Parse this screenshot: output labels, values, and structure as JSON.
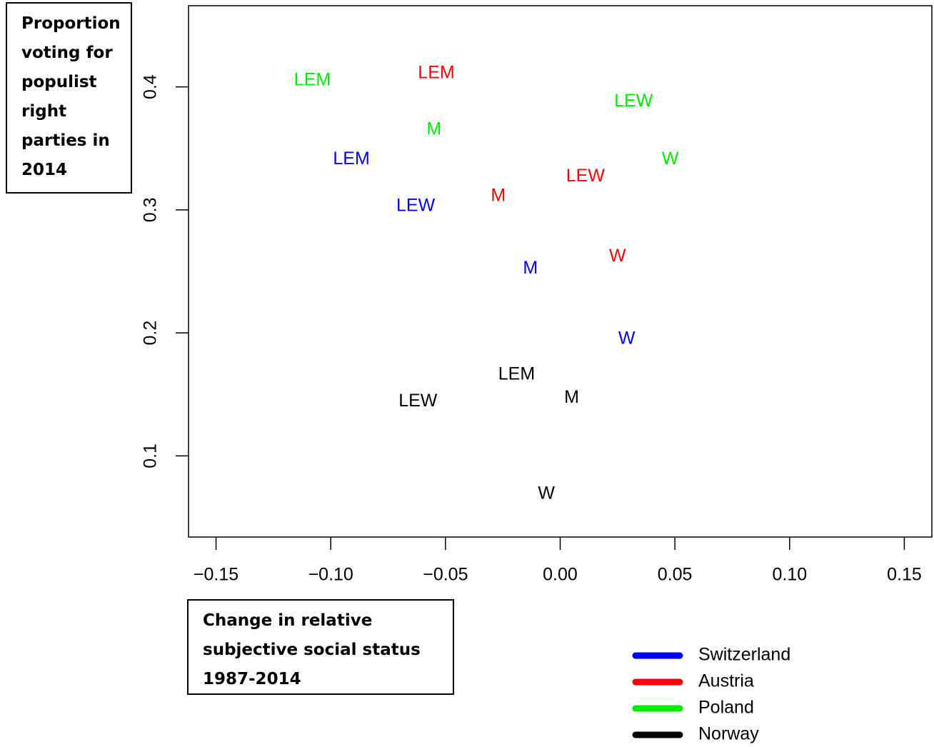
{
  "chart_data": {
    "type": "scatter",
    "y_label": "Proportion voting for populist right parties in 2014",
    "x_label": "Change in relative subjective social status 1987-2014",
    "xlim": [
      -0.162,
      0.162
    ],
    "ylim": [
      0.034,
      0.466
    ],
    "xticks": [
      {
        "value": -0.15,
        "label": "−0.15"
      },
      {
        "value": -0.1,
        "label": "−0.10"
      },
      {
        "value": -0.05,
        "label": "−0.05"
      },
      {
        "value": 0,
        "label": "0.00"
      },
      0.05,
      {
        "value": 0.1,
        "label": "0.10"
      },
      0.15
    ],
    "yticks": [
      0.1,
      0.2,
      0.3,
      0.4
    ],
    "legend": "bottom-right",
    "series": [
      {
        "name": "Switzerland",
        "color": "#0000ff",
        "labels": [
          "LEM",
          "LEW",
          "M",
          "W"
        ],
        "x": [
          -0.091,
          -0.063,
          -0.013,
          0.029
        ],
        "values": [
          0.341,
          0.303,
          0.252,
          0.195
        ]
      },
      {
        "name": "Austria",
        "color": "#ff0000",
        "labels": [
          "LEM",
          "M",
          "LEW",
          "W"
        ],
        "x": [
          -0.054,
          -0.027,
          0.011,
          0.025
        ],
        "values": [
          0.411,
          0.311,
          0.327,
          0.262
        ]
      },
      {
        "name": "Poland",
        "color": "#00ee00",
        "labels": [
          "LEM",
          "M",
          "LEW",
          "W"
        ],
        "x": [
          -0.108,
          -0.055,
          0.032,
          0.048
        ],
        "values": [
          0.405,
          0.365,
          0.388,
          0.341
        ]
      },
      {
        "name": "Norway",
        "color": "#000000",
        "labels": [
          "LEM",
          "LEW",
          "M",
          "W"
        ],
        "x": [
          -0.019,
          -0.062,
          0.005,
          -0.006
        ],
        "values": [
          0.166,
          0.144,
          0.147,
          0.069
        ]
      }
    ]
  }
}
